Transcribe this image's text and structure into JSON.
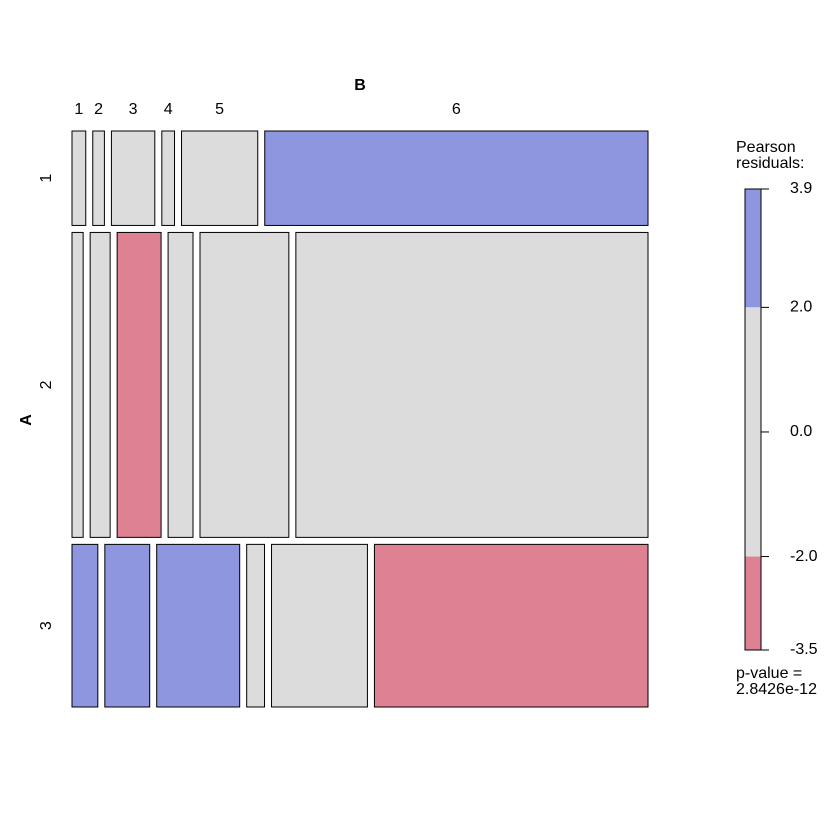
{
  "chart_data": {
    "type": "mosaic",
    "title": "B",
    "ylabel": "A",
    "columns": [
      "1",
      "2",
      "3",
      "4",
      "5",
      "6"
    ],
    "rows": [
      "1",
      "2",
      "3"
    ],
    "values": [
      [
        13,
        11,
        41,
        12,
        72,
        362
      ],
      [
        34,
        61,
        134,
        76,
        271,
        1074
      ],
      [
        42,
        73,
        135,
        29,
        156,
        445
      ]
    ],
    "colors": [
      [
        "#dcdcdc",
        "#dcdcdc",
        "#dcdcdc",
        "#dcdcdc",
        "#dcdcdc",
        "#8d96de"
      ],
      [
        "#dcdcdc",
        "#dcdcdc",
        "#de8192",
        "#dcdcdc",
        "#dcdcdc",
        "#dcdcdc"
      ],
      [
        "#8d96de",
        "#8d96de",
        "#8d96de",
        "#dcdcdc",
        "#dcdcdc",
        "#de8192"
      ]
    ],
    "legend": {
      "title": "Pearson\nresiduals:",
      "ylim": [
        -3.5,
        3.9
      ],
      "yticks": [
        3.9,
        {
          "value": 2.0,
          "label": "2.0"
        },
        {
          "value": 0.0,
          "label": "0.0"
        },
        {
          "value": -2.0,
          "label": "-2.0"
        },
        -3.5
      ],
      "band_colors": [
        "#8d96de",
        "#dcdcdc",
        "#de8192"
      ],
      "note": "p-value =\n2.8426e-12"
    }
  }
}
